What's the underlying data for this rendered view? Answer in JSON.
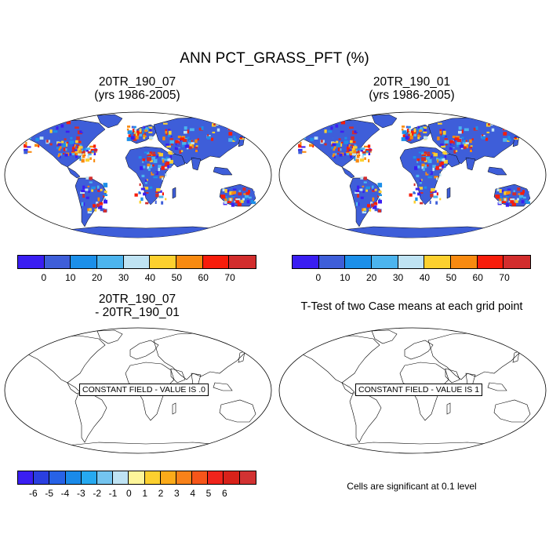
{
  "title": "ANN PCT_GRASS_PFT (%)",
  "panels": {
    "top_left": {
      "line1": "20TR_190_07",
      "line2": "(yrs 1986-2005)"
    },
    "top_right": {
      "line1": "20TR_190_01",
      "line2": "(yrs 1986-2005)"
    },
    "bottom_left": {
      "line1": "20TR_190_07",
      "line2": "- 20TR_190_01",
      "field_label": "CONSTANT FIELD - VALUE IS .0"
    },
    "bottom_right": {
      "line1": "T-Test of two Case means at each grid point",
      "field_label": "CONSTANT FIELD - VALUE IS 1"
    }
  },
  "colorbar_top": {
    "colors": [
      "#3a1ef2",
      "#3e5ed9",
      "#1c8fe9",
      "#4cb4ee",
      "#bfe3f3",
      "#fcd02f",
      "#f88a10",
      "#f71d0b",
      "#d22d2d"
    ],
    "labels": [
      "0",
      "10",
      "20",
      "30",
      "40",
      "50",
      "60",
      "70"
    ]
  },
  "colorbar_diff": {
    "colors": [
      "#3a1ef2",
      "#2a3fe0",
      "#2762e6",
      "#1a8ae9",
      "#26a9f0",
      "#74c4ef",
      "#bfe3f3",
      "#fdf59a",
      "#fcd02f",
      "#fbab1a",
      "#f8821a",
      "#f6561a",
      "#f0241b",
      "#d8221a",
      "#d23232"
    ],
    "labels": [
      "-6",
      "-5",
      "-4",
      "-3",
      "-2",
      "-1",
      "0",
      "1",
      "2",
      "3",
      "4",
      "5",
      "6"
    ]
  },
  "significance_note": "Cells are significant at 0.1 level",
  "chart_data": [
    {
      "type": "heatmap",
      "title": "20TR_190_07 (yrs 1986-2005)",
      "variable": "ANN PCT_GRASS_PFT (%)",
      "levels": [
        0,
        10,
        20,
        30,
        40,
        50,
        60,
        70
      ]
    },
    {
      "type": "heatmap",
      "title": "20TR_190_01 (yrs 1986-2005)",
      "variable": "ANN PCT_GRASS_PFT (%)",
      "levels": [
        0,
        10,
        20,
        30,
        40,
        50,
        60,
        70
      ]
    },
    {
      "type": "heatmap",
      "title": "20TR_190_07 - 20TR_190_01",
      "constant_value": 0,
      "levels": [
        -6,
        -5,
        -4,
        -3,
        -2,
        -1,
        0,
        1,
        2,
        3,
        4,
        5,
        6
      ]
    },
    {
      "type": "heatmap",
      "title": "T-Test of two Case means at each grid point",
      "constant_value": 1
    }
  ]
}
